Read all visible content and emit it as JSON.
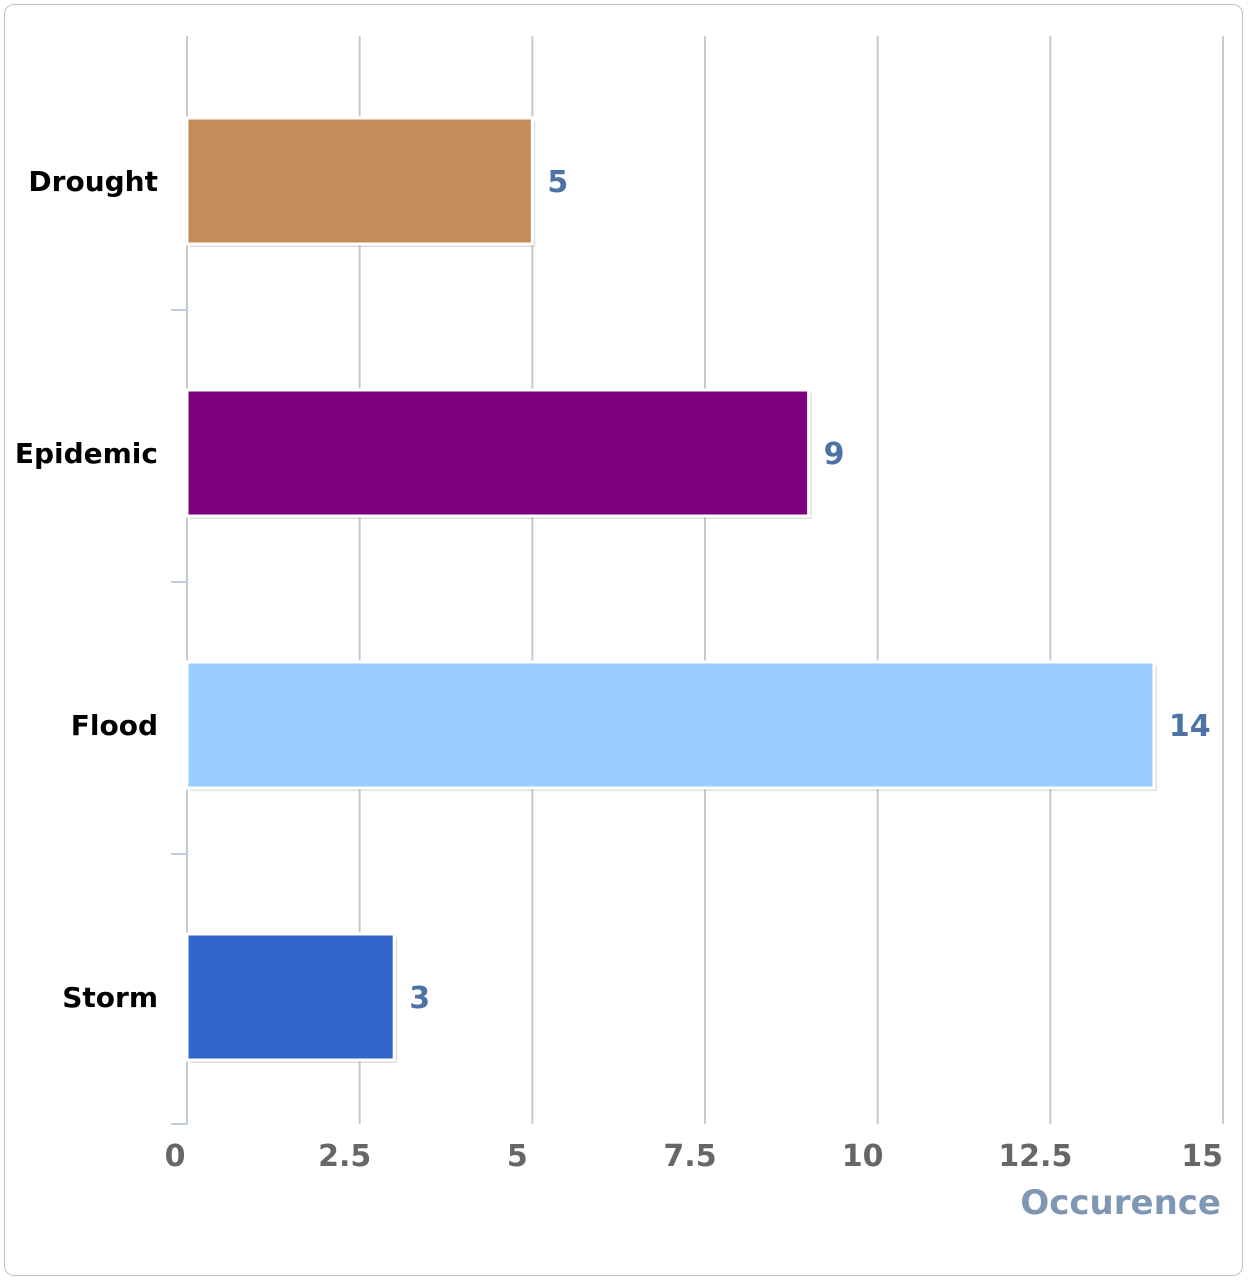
{
  "chart_data": {
    "type": "bar",
    "orientation": "horizontal",
    "categories": [
      "Drought",
      "Epidemic",
      "Flood",
      "Storm"
    ],
    "values": [
      5,
      9,
      14,
      3
    ],
    "colors": [
      "#c48c5a",
      "#7d007d",
      "#99ccff",
      "#3366cc"
    ],
    "xlabel": "Occurence",
    "xlim": [
      0,
      15
    ],
    "xticks": [
      "0",
      "2.5",
      "5",
      "7.5",
      "10",
      "12.5",
      "15"
    ],
    "xtick_values": [
      0,
      2.5,
      5,
      7.5,
      10,
      12.5,
      15
    ],
    "data_labels": [
      "5",
      "9",
      "14",
      "3"
    ],
    "grid": true,
    "legend": "none"
  },
  "colors": {
    "gridline": "#c8c8c8",
    "axis": "#c0cad8",
    "tick_label": "#666666",
    "value_label": "#4d73a6",
    "axis_title": "#7f97b2"
  }
}
